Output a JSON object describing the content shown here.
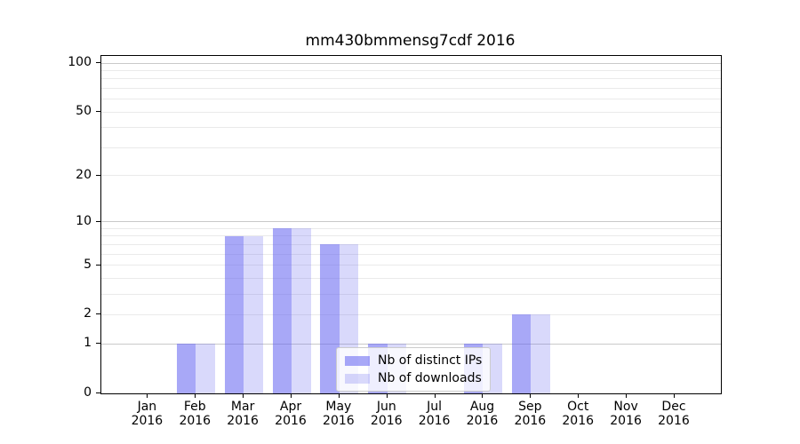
{
  "chart_data": {
    "type": "bar",
    "title": "mm430bmmensg7cdf 2016",
    "categories": [
      "Jan",
      "Feb",
      "Mar",
      "Apr",
      "May",
      "Jun",
      "Jul",
      "Aug",
      "Sep",
      "Oct",
      "Nov",
      "Dec"
    ],
    "category_year": "2016",
    "series": [
      {
        "name": "Nb of distinct IPs",
        "fill": "rgba(96,96,240,0.55)",
        "values": [
          0,
          1,
          8,
          9,
          7,
          1,
          0,
          1,
          2,
          0,
          0,
          0
        ]
      },
      {
        "name": "Nb of downloads",
        "fill": "rgba(96,96,240,0.24)",
        "values": [
          0,
          1,
          8,
          9,
          7,
          1,
          0,
          1,
          2,
          0,
          0,
          0
        ]
      }
    ],
    "y_axis": {
      "scale": "log1p",
      "tick_labels": [
        0,
        1,
        2,
        5,
        10,
        20,
        50,
        100
      ],
      "major_grid": [
        1,
        10,
        100
      ],
      "minor_grid": [
        2,
        3,
        4,
        5,
        6,
        7,
        8,
        9,
        20,
        30,
        40,
        50,
        60,
        70,
        80,
        90
      ],
      "ylim": [
        0,
        111
      ]
    },
    "x_axis": {
      "ticks_per_month": true
    },
    "legend": {
      "position": "lower center"
    },
    "grid": true,
    "colors": {
      "major_grid": "#c9c9c9",
      "minor_grid": "#eaeaea",
      "spine": "#000000",
      "background": "#ffffff"
    }
  }
}
